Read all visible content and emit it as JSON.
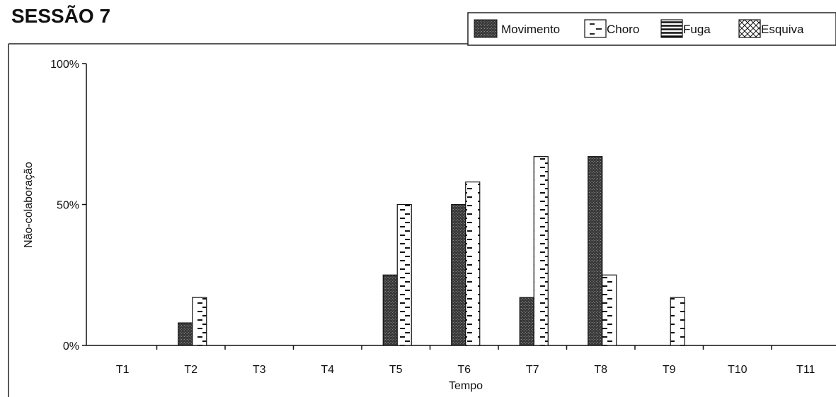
{
  "chart_data": {
    "type": "bar",
    "title": "SESSÃO 7",
    "xlabel": "Tempo",
    "ylabel": "Não-colaboração",
    "categories": [
      "T1",
      "T2",
      "T3",
      "T4",
      "T5",
      "T6",
      "T7",
      "T8",
      "T9",
      "T10",
      "T11"
    ],
    "yticks": [
      "0%",
      "50%",
      "100%"
    ],
    "ylim": [
      0,
      100
    ],
    "grid": false,
    "legend_position": "top-right",
    "series": [
      {
        "name": "Movimento",
        "pattern": "dark-stipple",
        "values": [
          0,
          8,
          0,
          0,
          25,
          50,
          17,
          67,
          0,
          0,
          0
        ]
      },
      {
        "name": "Choro",
        "pattern": "white-dashes",
        "values": [
          0,
          17,
          0,
          0,
          50,
          58,
          67,
          25,
          17,
          0,
          0
        ]
      },
      {
        "name": "Fuga",
        "pattern": "horizontal-lines",
        "values": [
          0,
          0,
          0,
          0,
          0,
          0,
          0,
          0,
          0,
          0,
          0
        ]
      },
      {
        "name": "Esquiva",
        "pattern": "cross-hatch",
        "values": [
          0,
          0,
          0,
          0,
          0,
          0,
          0,
          0,
          0,
          0,
          0
        ]
      }
    ]
  }
}
